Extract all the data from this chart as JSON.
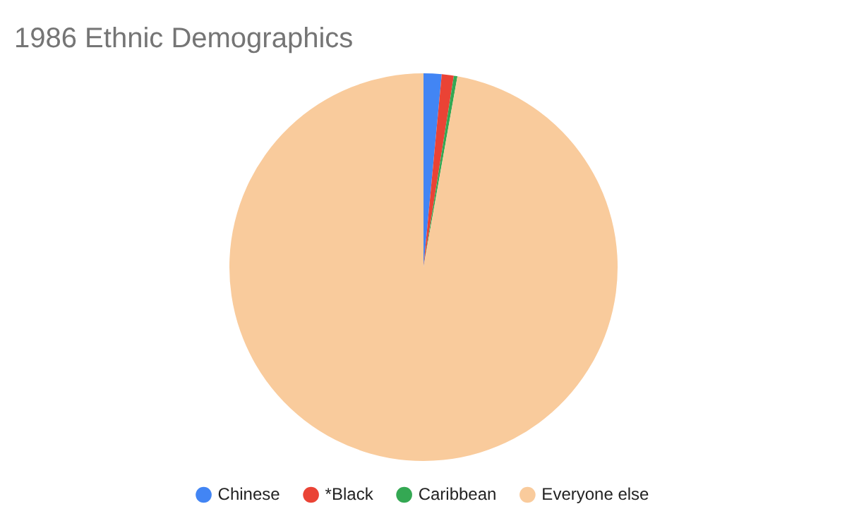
{
  "chart_data": {
    "type": "pie",
    "title": "1986 Ethnic Demographics",
    "categories": [
      "Chinese",
      "*Black",
      "Caribbean",
      "Everyone else"
    ],
    "values": [
      1.5,
      1.0,
      0.3,
      97.2
    ],
    "colors": [
      "#4285f4",
      "#ea4335",
      "#34a853",
      "#f9cb9c"
    ],
    "legend": "bottom"
  }
}
